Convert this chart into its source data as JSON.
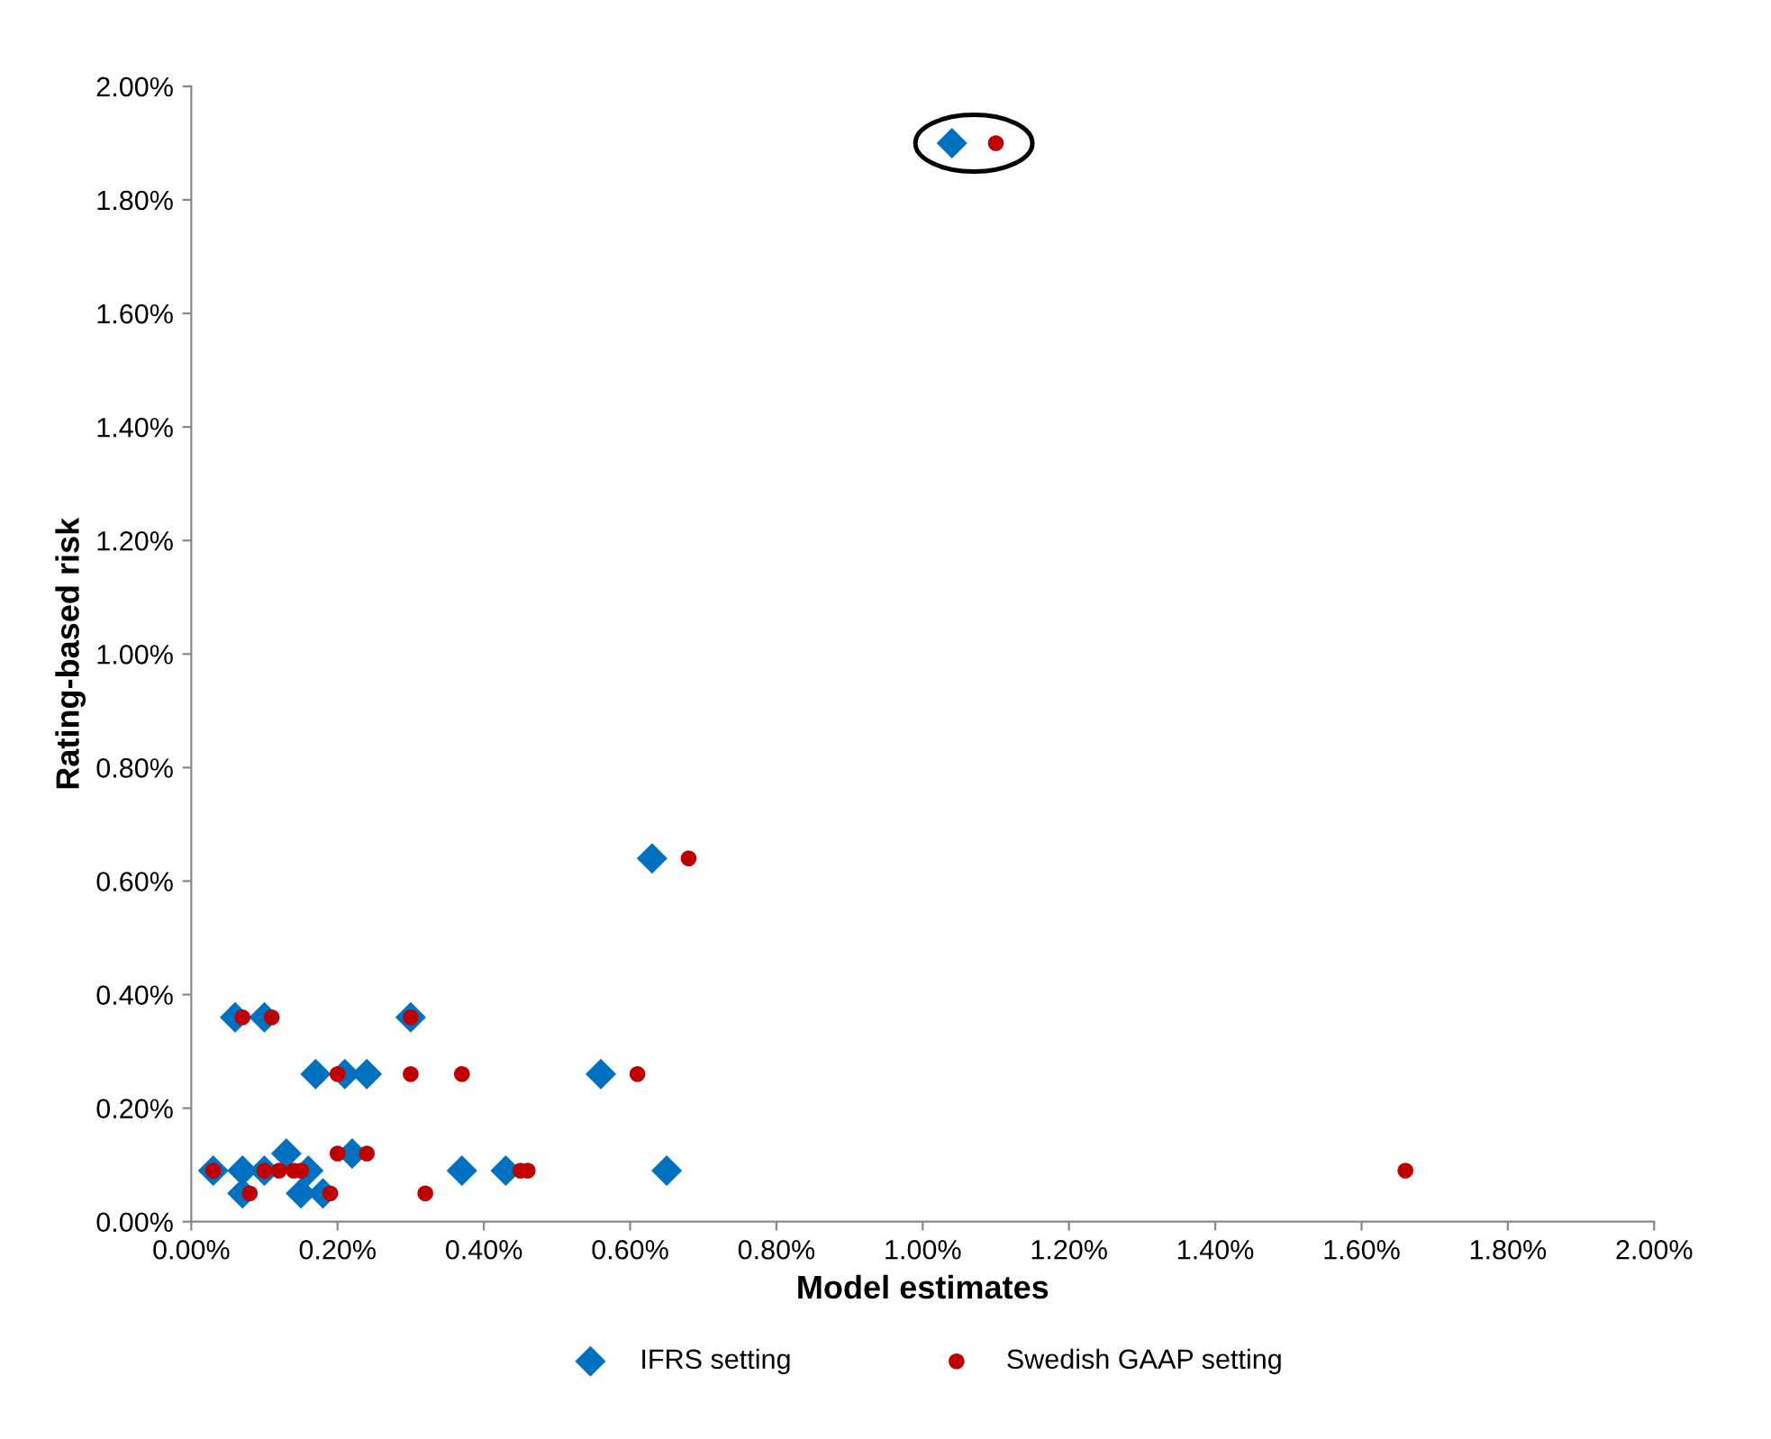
{
  "chart_data": {
    "type": "scatter",
    "xlabel": "Model estimates",
    "ylabel": "Rating-based risk",
    "xlim": [
      0,
      2
    ],
    "ylim": [
      0,
      2
    ],
    "xticks": [
      {
        "value": 0,
        "label": "0.00%"
      },
      {
        "value": 0.2,
        "label": "0.20%"
      },
      {
        "value": 0.4,
        "label": "0.40%"
      },
      {
        "value": 0.6,
        "label": "0.60%"
      },
      {
        "value": 0.8,
        "label": "0.80%"
      },
      {
        "value": 1.0,
        "label": "1.00%"
      },
      {
        "value": 1.2,
        "label": "1.20%"
      },
      {
        "value": 1.4,
        "label": "1.40%"
      },
      {
        "value": 1.6,
        "label": "1.60%"
      },
      {
        "value": 1.8,
        "label": "1.80%"
      },
      {
        "value": 2.0,
        "label": "2.00%"
      }
    ],
    "yticks": [
      {
        "value": 0,
        "label": "0.00%"
      },
      {
        "value": 0.2,
        "label": "0.20%"
      },
      {
        "value": 0.4,
        "label": "0.40%"
      },
      {
        "value": 0.6,
        "label": "0.60%"
      },
      {
        "value": 0.8,
        "label": "0.80%"
      },
      {
        "value": 1.0,
        "label": "1.00%"
      },
      {
        "value": 1.2,
        "label": "1.20%"
      },
      {
        "value": 1.4,
        "label": "1.40%"
      },
      {
        "value": 1.6,
        "label": "1.60%"
      },
      {
        "value": 1.8,
        "label": "1.80%"
      },
      {
        "value": 2.0,
        "label": "2.00%"
      }
    ],
    "grid": false,
    "legend": "bottom",
    "series": [
      {
        "name": "IFRS setting",
        "color": "#0070c0",
        "marker": "diamond",
        "x": [
          0.03,
          0.07,
          0.1,
          0.16,
          0.37,
          0.43,
          0.65,
          0.07,
          0.15,
          0.18,
          0.13,
          0.22,
          0.17,
          0.21,
          0.24,
          0.56,
          0.06,
          0.1,
          0.3,
          0.63,
          1.04
        ],
        "values": [
          0.09,
          0.09,
          0.09,
          0.09,
          0.09,
          0.09,
          0.09,
          0.05,
          0.05,
          0.05,
          0.12,
          0.12,
          0.26,
          0.26,
          0.26,
          0.26,
          0.36,
          0.36,
          0.36,
          0.64,
          1.9
        ]
      },
      {
        "name": "Swedish GAAP setting",
        "color": "#c00000",
        "marker": "circle",
        "x": [
          0.03,
          0.1,
          0.12,
          0.14,
          0.15,
          0.45,
          0.46,
          1.66,
          0.08,
          0.19,
          0.32,
          0.2,
          0.24,
          0.2,
          0.3,
          0.37,
          0.61,
          0.07,
          0.11,
          0.3,
          0.68,
          1.1
        ],
        "values": [
          0.09,
          0.09,
          0.09,
          0.09,
          0.09,
          0.09,
          0.09,
          0.09,
          0.05,
          0.05,
          0.05,
          0.12,
          0.12,
          0.26,
          0.26,
          0.26,
          0.26,
          0.36,
          0.36,
          0.36,
          0.64,
          1.9
        ]
      }
    ]
  }
}
